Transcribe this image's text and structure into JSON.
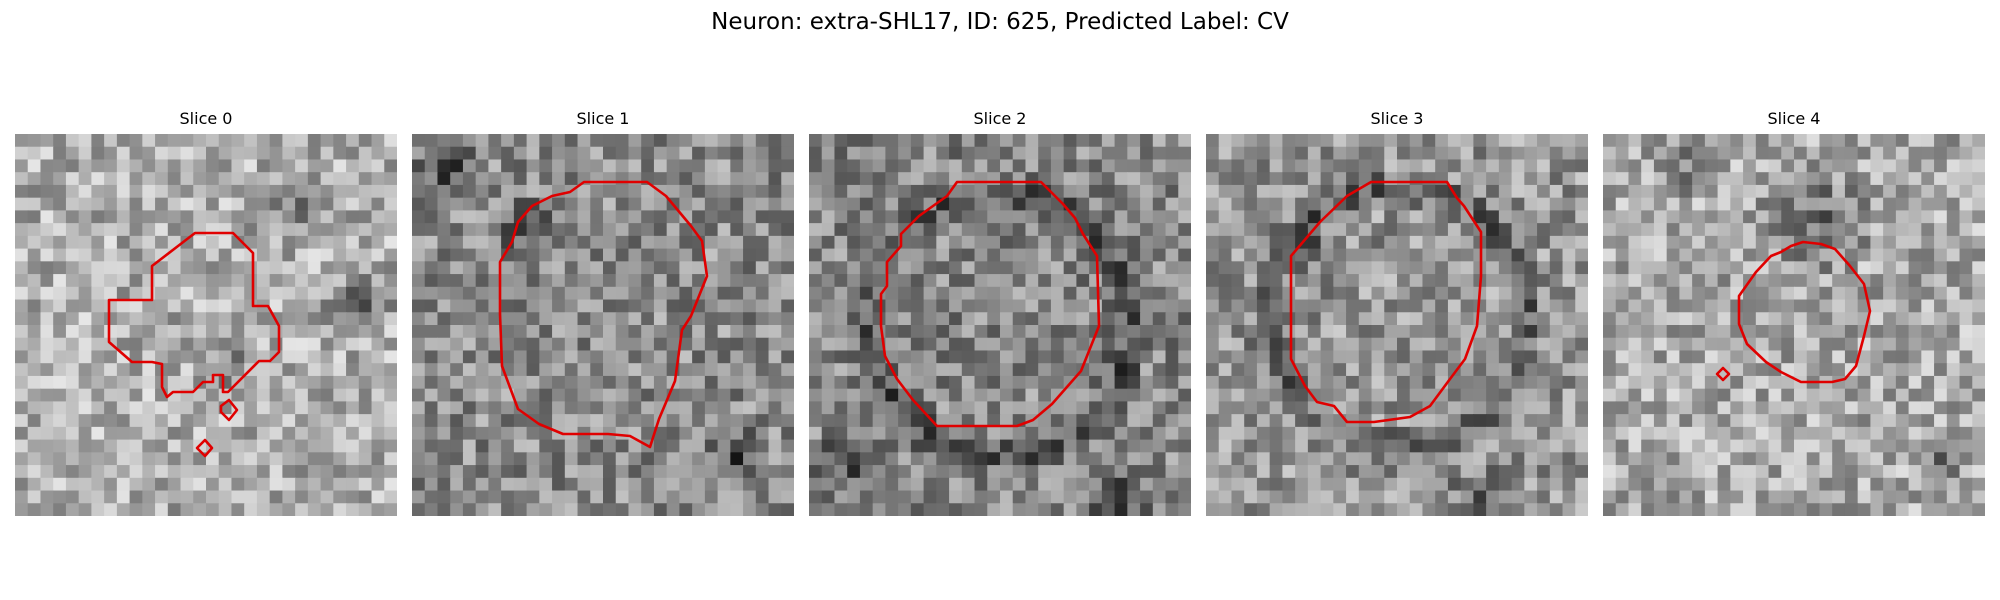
{
  "figure": {
    "title": "Neuron: extra-SHL17, ID: 625, Predicted Label: CV",
    "contour_color": "#e00000"
  },
  "panels": [
    {
      "title": "Slice 0"
    },
    {
      "title": "Slice 1"
    },
    {
      "title": "Slice 2"
    },
    {
      "title": "Slice 3"
    },
    {
      "title": "Slice 4"
    }
  ]
}
